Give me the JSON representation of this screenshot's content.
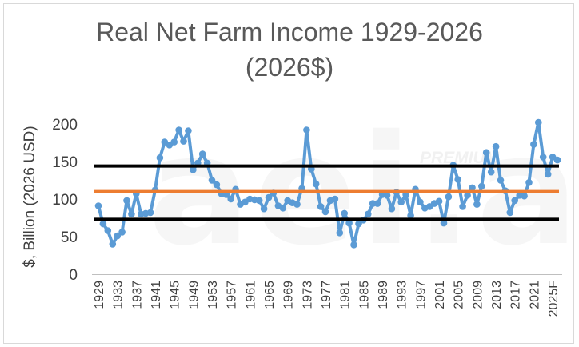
{
  "chart_data": {
    "type": "line",
    "title_line1": "Real Net Farm Income 1929-2026",
    "title_line2": "(2026$)",
    "xlabel": "",
    "ylabel": "$, Billion (2026 USD)",
    "ylim": [
      0,
      220
    ],
    "yticks": [
      0,
      50,
      100,
      150,
      200
    ],
    "grid": false,
    "watermark": "aei.ag",
    "watermark_sub": "PREMIUM",
    "x_tick_labels": [
      "1929",
      "1933",
      "1937",
      "1941",
      "1945",
      "1949",
      "1953",
      "1957",
      "1961",
      "1965",
      "1969",
      "1973",
      "1977",
      "1981",
      "1985",
      "1989",
      "1993",
      "1997",
      "2001",
      "2005",
      "2009",
      "2013",
      "2017",
      "2021",
      "2025F"
    ],
    "x": [
      "1929",
      "1930",
      "1931",
      "1932",
      "1933",
      "1934",
      "1935",
      "1936",
      "1937",
      "1938",
      "1939",
      "1940",
      "1941",
      "1942",
      "1943",
      "1944",
      "1945",
      "1946",
      "1947",
      "1948",
      "1949",
      "1950",
      "1951",
      "1952",
      "1953",
      "1954",
      "1955",
      "1956",
      "1957",
      "1958",
      "1959",
      "1960",
      "1961",
      "1962",
      "1963",
      "1964",
      "1965",
      "1966",
      "1967",
      "1968",
      "1969",
      "1970",
      "1971",
      "1972",
      "1973",
      "1974",
      "1975",
      "1976",
      "1977",
      "1978",
      "1979",
      "1980",
      "1981",
      "1982",
      "1983",
      "1984",
      "1985",
      "1986",
      "1987",
      "1988",
      "1989",
      "1990",
      "1991",
      "1992",
      "1993",
      "1994",
      "1995",
      "1996",
      "1997",
      "1998",
      "1999",
      "2000",
      "2001",
      "2002",
      "2003",
      "2004",
      "2005",
      "2006",
      "2007",
      "2008",
      "2009",
      "2010",
      "2011",
      "2012",
      "2013",
      "2014",
      "2015",
      "2016",
      "2017",
      "2018",
      "2019",
      "2020",
      "2021",
      "2022",
      "2023",
      "2024",
      "2025F",
      "2026F"
    ],
    "series": [
      {
        "color": "#5b9bd5",
        "values": [
          91,
          67,
          58,
          40,
          51,
          56,
          98,
          80,
          107,
          80,
          81,
          82,
          112,
          155,
          176,
          172,
          176,
          192,
          177,
          191,
          139,
          148,
          160,
          148,
          125,
          119,
          107,
          106,
          100,
          113,
          93,
          96,
          100,
          99,
          98,
          87,
          102,
          108,
          91,
          88,
          98,
          95,
          93,
          114,
          192,
          140,
          120,
          90,
          83,
          98,
          100,
          55,
          81,
          68,
          39,
          67,
          72,
          80,
          94,
          94,
          106,
          105,
          87,
          109,
          96,
          106,
          78,
          113,
          96,
          88,
          90,
          94,
          97,
          68,
          103,
          145,
          126,
          90,
          105,
          115,
          93,
          117,
          162,
          136,
          170,
          125,
          111,
          82,
          98,
          105,
          104,
          122,
          173,
          202,
          156,
          133,
          156,
          152
        ]
      }
    ],
    "reference_lines": [
      {
        "value": 144,
        "color": "#000000"
      },
      {
        "value": 110,
        "color": "#ed7d31"
      },
      {
        "value": 73,
        "color": "#000000"
      }
    ]
  }
}
